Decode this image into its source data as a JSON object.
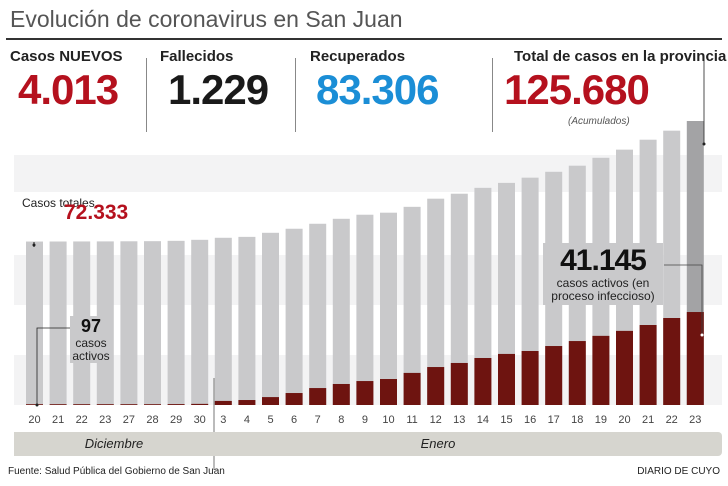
{
  "header": {
    "title": "Evolución de coronavirus en San Juan"
  },
  "stats": {
    "nuevos": {
      "label": "Casos NUEVOS",
      "value": "4.013"
    },
    "fallecidos": {
      "label": "Fallecidos",
      "value": "1.229"
    },
    "recuperados": {
      "label": "Recuperados",
      "value": "83.306"
    },
    "total": {
      "label": "Total de casos en la provincia",
      "value": "125.680",
      "note": "(Acumulados)"
    }
  },
  "colors": {
    "red": "#b5111e",
    "blue": "#1b8ed6",
    "bar_gray": "#c9c9cb",
    "last_bar_gray": "#a3a3a5",
    "active": "#6e1410"
  },
  "annotations": {
    "start_total_label": "Casos totales",
    "start_total_value": "72.333",
    "start_active_value": "97",
    "start_active_label": "casos activos",
    "end_active_value": "41.145",
    "end_active_label": "casos activos (en proceso infeccioso)"
  },
  "chart_data": {
    "type": "bar",
    "categories": [
      "20",
      "21",
      "22",
      "23",
      "27",
      "28",
      "29",
      "30",
      "3",
      "4",
      "5",
      "6",
      "7",
      "8",
      "9",
      "10",
      "11",
      "12",
      "13",
      "14",
      "15",
      "16",
      "17",
      "18",
      "19",
      "20",
      "21",
      "22",
      "23"
    ],
    "months": [
      {
        "label": "Diciembre",
        "count": 8
      },
      {
        "label": "Enero",
        "count": 21
      }
    ],
    "series": [
      {
        "name": "Casos totales",
        "values": [
          72333,
          72350,
          72380,
          72400,
          72450,
          72500,
          72650,
          73100,
          74000,
          74400,
          76200,
          78000,
          80200,
          82400,
          84200,
          85100,
          87700,
          91300,
          93500,
          96100,
          98300,
          100600,
          103200,
          105900,
          109400,
          113000,
          117400,
          121400,
          125680
        ]
      },
      {
        "name": "casos activos",
        "values": [
          97,
          120,
          150,
          200,
          250,
          300,
          400,
          500,
          1800,
          2200,
          3500,
          5300,
          7500,
          9300,
          10600,
          11500,
          14200,
          16800,
          18600,
          20800,
          22600,
          23900,
          26100,
          28300,
          30600,
          32800,
          35400,
          38500,
          41145
        ]
      }
    ]
  },
  "footer": {
    "source": "Fuente: Salud Pública del Gobierno de San Juan",
    "brand": "DIARIO DE CUYO"
  }
}
